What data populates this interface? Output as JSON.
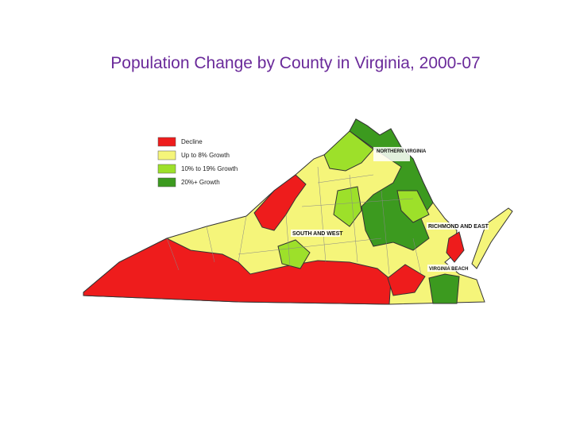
{
  "title": "Population Change by County in Virginia, 2000-07",
  "legend": [
    {
      "label": "Decline",
      "color": "#ee1c1c"
    },
    {
      "label": "Up to 8% Growth",
      "color": "#f5f57a"
    },
    {
      "label": "10% to 19% Growth",
      "color": "#9de02a"
    },
    {
      "label": "20%+ Growth",
      "color": "#3c9a1f"
    }
  ],
  "regions": [
    {
      "label": "NORTHERN VIRGINIA"
    },
    {
      "label": "RICHMOND AND EAST"
    },
    {
      "label": "SOUTH AND WEST"
    },
    {
      "label": "VIRGINIA BEACH"
    }
  ]
}
